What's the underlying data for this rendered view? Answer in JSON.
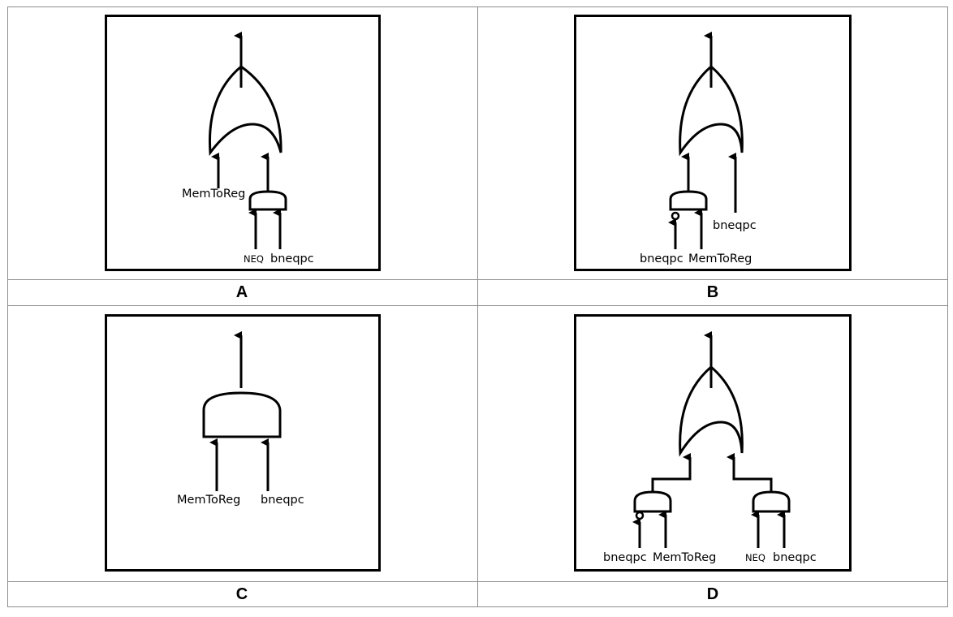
{
  "panels": {
    "a": {
      "caption": "A",
      "labels": {
        "memtoreg": "MemToReg",
        "neq": "NEQ",
        "bneqpc": "bneqpc"
      }
    },
    "b": {
      "caption": "B",
      "labels": {
        "bneqpc_right": "bneqpc",
        "bneqpc_bottom": "bneqpc",
        "memtoreg": "MemToReg"
      }
    },
    "c": {
      "caption": "C",
      "labels": {
        "memtoreg": "MemToReg",
        "bneqpc": "bneqpc"
      }
    },
    "d": {
      "caption": "D",
      "labels": {
        "bneqpc_left": "bneqpc",
        "memtoreg": "MemToReg",
        "neq": "NEQ",
        "bneqpc_right": "bneqpc"
      }
    }
  },
  "colors": {
    "line": "#000000",
    "grid": "#8c8c8c"
  }
}
